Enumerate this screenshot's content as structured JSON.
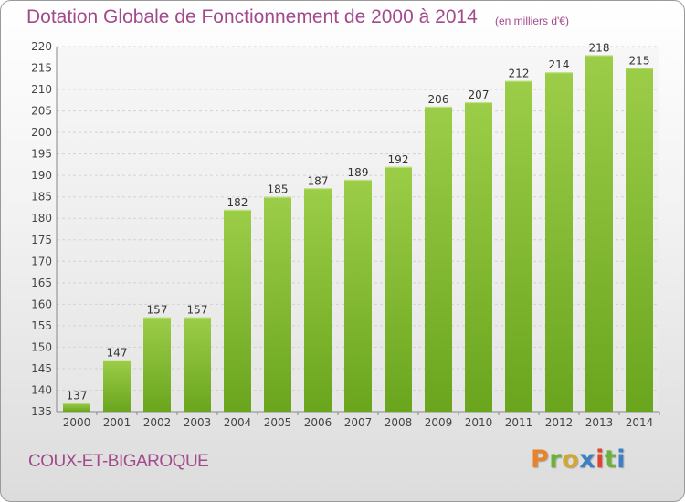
{
  "header": {
    "title": "Dotation Globale de Fonctionnement de 2000 à 2014",
    "unit": "(en milliers d'€)"
  },
  "footer": {
    "commune": "COUX-ET-BIGAROQUE",
    "logo_text": "Proxiti"
  },
  "colors": {
    "accent": "#a24a8c",
    "bar_light": "#9ccd48",
    "bar_dark": "#6aa51e",
    "logo": [
      "#e8832a",
      "#6cb23a",
      "#d3a82e",
      "#3d7fc2",
      "#e0442e",
      "#6cb23a",
      "#3d7fc2"
    ]
  },
  "chart_data": {
    "type": "bar",
    "categories": [
      "2000",
      "2001",
      "2002",
      "2003",
      "2004",
      "2005",
      "2006",
      "2007",
      "2008",
      "2009",
      "2010",
      "2011",
      "2012",
      "2013",
      "2014"
    ],
    "values": [
      137,
      147,
      157,
      157,
      182,
      185,
      187,
      189,
      192,
      206,
      207,
      212,
      214,
      218,
      215
    ],
    "title": "Dotation Globale de Fonctionnement de 2000 à 2014",
    "ylim": [
      135,
      220
    ],
    "yticks": [
      135,
      140,
      145,
      150,
      155,
      160,
      165,
      170,
      175,
      180,
      185,
      190,
      195,
      200,
      205,
      210,
      215,
      220
    ],
    "grid": true
  }
}
